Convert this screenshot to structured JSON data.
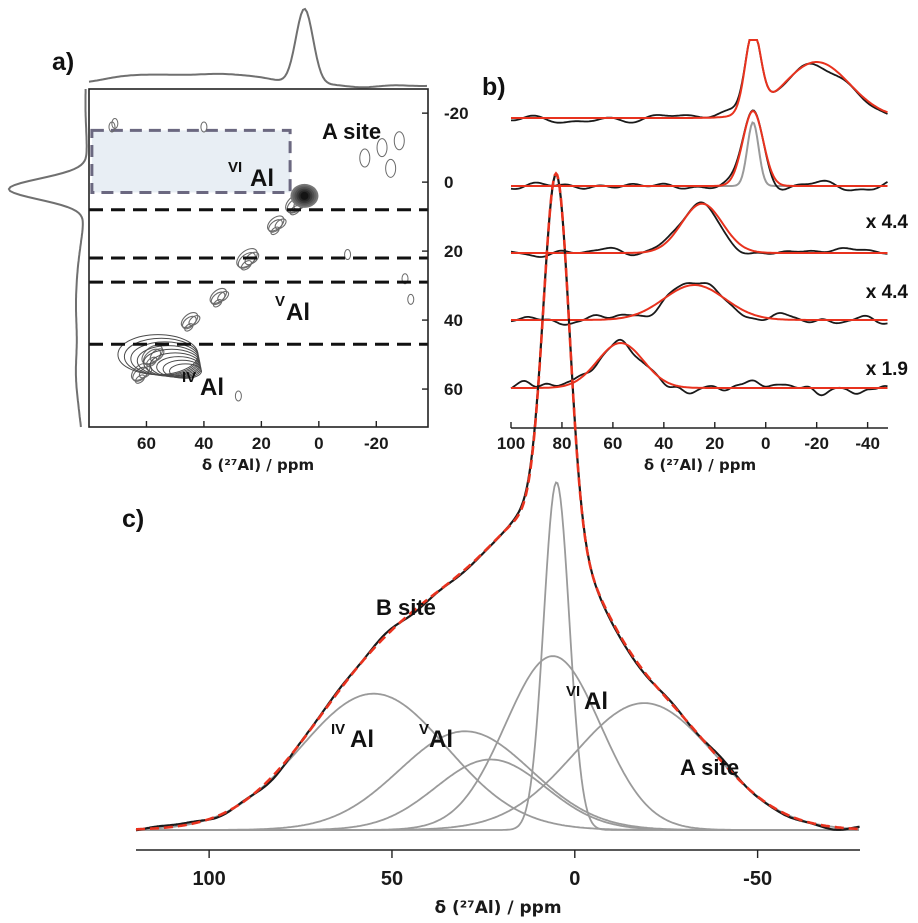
{
  "colors": {
    "experimental": "#1a1a1a",
    "fit": "#e8321e",
    "component": "#9a9a9a",
    "contour": "#6a6a6a",
    "projection": "#707070",
    "selection_box_border": "#6b6880",
    "selection_box_fill": "#e8eef4"
  },
  "chart_data": [
    {
      "id": "a",
      "type": "heatmap",
      "panel_label": "a)",
      "title": "",
      "xlabel": "δ (²⁷Al) / ppm",
      "ylabel": "",
      "xlim": [
        80,
        -38
      ],
      "ylim": [
        -27,
        71
      ],
      "xticks": [
        "60",
        "40",
        "20",
        "0",
        "-20"
      ],
      "yticks": [
        "-20",
        "0",
        "20",
        "40",
        "60"
      ],
      "y_axis_side": "right",
      "grid": false,
      "slice_lines_ppm": [
        8,
        22,
        29,
        47
      ],
      "selection_box_ppm": {
        "x": [
          79,
          10
        ],
        "y": [
          -15,
          3
        ]
      },
      "peaks": [
        {
          "x": 5,
          "y": 4,
          "intensity": "strong"
        },
        {
          "x": 25,
          "y": 23,
          "intensity": "medium"
        },
        {
          "x": 58,
          "y": 52,
          "intensity": "strong"
        },
        {
          "x": -22,
          "y": -10,
          "intensity": "weak"
        }
      ],
      "top_projection_peak_ppm": 5,
      "left_projection_peak_ppm": 2,
      "annotations": {
        "a_site": "A site",
        "vi": {
          "sup": "VI",
          "main": "Al"
        },
        "v": {
          "sup": "V",
          "main": "Al"
        },
        "iv": {
          "sup": "IV",
          "main": "Al"
        }
      }
    },
    {
      "id": "b",
      "type": "line",
      "panel_label": "b)",
      "title": "",
      "xlabel": "δ (²⁷Al) / ppm",
      "ylabel": "",
      "xlim": [
        100,
        -48
      ],
      "xticks": [
        "100",
        "80",
        "60",
        "40",
        "20",
        "0",
        "-20",
        "-40"
      ],
      "grid": false,
      "series": [
        {
          "offset_index": 0,
          "scale_label": "",
          "fit_peaks": [
            {
              "center": 5,
              "height": 1.0,
              "width": 3
            },
            {
              "center": -20,
              "height": 0.7,
              "width": 13
            }
          ]
        },
        {
          "offset_index": 1,
          "scale_label": "",
          "fit_peaks": [
            {
              "center": 5,
              "height": 1.0,
              "width": 4
            }
          ]
        },
        {
          "offset_index": 2,
          "scale_label": "x 4.4",
          "fit_peaks": [
            {
              "center": 25,
              "height": 0.85,
              "width": 8
            }
          ]
        },
        {
          "offset_index": 3,
          "scale_label": "x 4.4",
          "fit_peaks": [
            {
              "center": 28,
              "height": 0.7,
              "width": 12
            }
          ]
        },
        {
          "offset_index": 4,
          "scale_label": "x 1.9",
          "fit_peaks": [
            {
              "center": 57,
              "height": 0.9,
              "width": 9
            }
          ]
        }
      ]
    },
    {
      "id": "c",
      "type": "line",
      "panel_label": "c)",
      "title": "",
      "xlabel": "δ (²⁷Al) / ppm",
      "ylabel": "",
      "xlim": [
        120,
        -78
      ],
      "xticks": [
        "100",
        "50",
        "0",
        "-50"
      ],
      "xtick_values": [
        100,
        50,
        0,
        -50
      ],
      "grid": false,
      "components": [
        {
          "center": 55,
          "height": 0.29,
          "width": 20
        },
        {
          "center": 30,
          "height": 0.21,
          "width": 18
        },
        {
          "center": 23,
          "height": 0.15,
          "width": 15
        },
        {
          "center": 6,
          "height": 0.37,
          "width": 13
        },
        {
          "center": 5,
          "height": 0.74,
          "width": 3.5
        },
        {
          "center": -19,
          "height": 0.27,
          "width": 19
        }
      ],
      "annotations": {
        "b_site": "B site",
        "a_site": "A site",
        "iv": {
          "sup": "IV",
          "main": "Al"
        },
        "v": {
          "sup": "V",
          "main": "Al"
        },
        "vi": {
          "sup": "VI",
          "main": "Al"
        }
      }
    }
  ]
}
